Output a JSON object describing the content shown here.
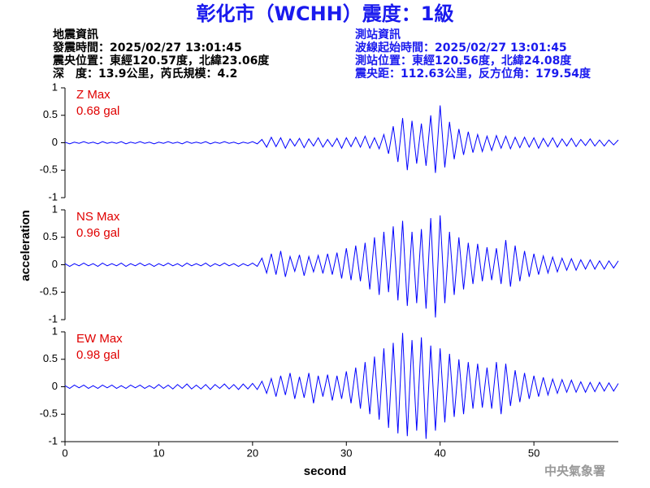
{
  "header": {
    "title": "彰化市（WCHH）震度：1級",
    "left": [
      "地震資訊",
      "發震時間：2025/02/27 13:01:45",
      "震央位置：東經120.57度，北緯23.06度",
      "深　度：13.9公里，芮氏規模：4.2"
    ],
    "right": [
      "測站資訊",
      "波線起始時間：2025/02/27 13:01:45",
      "測站位置：東經120.56度，北緯24.08度",
      "震央距：112.63公里，反方位角：179.54度"
    ],
    "footer": "中央氣象署"
  },
  "chart_data": {
    "type": "line",
    "y_label": "acceleration",
    "x_label": "second",
    "xlim": [
      0,
      59
    ],
    "xticks": [
      0,
      10,
      20,
      30,
      40,
      50
    ],
    "ylim": [
      -1,
      1
    ],
    "yticks": [
      1,
      0.5,
      0,
      -0.5,
      -1
    ],
    "x": [
      0,
      0.5,
      1,
      1.5,
      2,
      2.5,
      3,
      3.5,
      4,
      4.5,
      5,
      5.5,
      6,
      6.5,
      7,
      7.5,
      8,
      8.5,
      9,
      9.5,
      10,
      10.5,
      11,
      11.5,
      12,
      12.5,
      13,
      13.5,
      14,
      14.5,
      15,
      15.5,
      16,
      16.5,
      17,
      17.5,
      18,
      18.5,
      19,
      19.5,
      20,
      20.5,
      21,
      21.5,
      22,
      22.5,
      23,
      23.5,
      24,
      24.5,
      25,
      25.5,
      26,
      26.5,
      27,
      27.5,
      28,
      28.5,
      29,
      29.5,
      30,
      30.5,
      31,
      31.5,
      32,
      32.5,
      33,
      33.5,
      34,
      34.5,
      35,
      35.5,
      36,
      36.5,
      37,
      37.5,
      38,
      38.5,
      39,
      39.5,
      40,
      40.5,
      41,
      41.5,
      42,
      42.5,
      43,
      43.5,
      44,
      44.5,
      45,
      45.5,
      46,
      46.5,
      47,
      47.5,
      48,
      48.5,
      49,
      49.5,
      50,
      50.5,
      51,
      51.5,
      52,
      52.5,
      53,
      53.5,
      54,
      54.5,
      55,
      55.5,
      56,
      56.5,
      57,
      57.5,
      58,
      58.5,
      59
    ],
    "series": [
      {
        "name": "Z Max",
        "max_label": "0.68 gal",
        "color": "#0000ff",
        "label_color": "#e00000",
        "values": [
          0.01,
          -0.02,
          0.01,
          -0.01,
          0.02,
          -0.01,
          0.01,
          -0.02,
          0.02,
          -0.01,
          0.01,
          -0.01,
          0.02,
          -0.02,
          0.01,
          -0.01,
          0.02,
          -0.01,
          0.01,
          -0.02,
          0.01,
          -0.01,
          0.02,
          -0.01,
          0.01,
          -0.02,
          0.02,
          -0.01,
          0.01,
          -0.01,
          0.02,
          -0.02,
          0.01,
          -0.01,
          0.02,
          -0.01,
          0.01,
          -0.02,
          0.01,
          -0.01,
          0.02,
          -0.02,
          0.06,
          -0.08,
          0.1,
          -0.07,
          0.09,
          -0.1,
          0.07,
          -0.06,
          0.08,
          -0.09,
          0.07,
          -0.06,
          0.09,
          -0.08,
          0.06,
          -0.07,
          0.08,
          -0.1,
          0.09,
          -0.07,
          0.1,
          -0.08,
          0.12,
          -0.1,
          0.09,
          -0.11,
          0.15,
          -0.2,
          0.3,
          -0.35,
          0.45,
          -0.5,
          0.4,
          -0.38,
          0.35,
          -0.42,
          0.5,
          -0.55,
          0.68,
          -0.45,
          0.38,
          -0.3,
          0.25,
          -0.22,
          0.2,
          -0.18,
          0.15,
          -0.16,
          0.12,
          -0.14,
          0.13,
          -0.1,
          0.12,
          -0.11,
          0.1,
          -0.09,
          0.1,
          -0.08,
          0.09,
          -0.1,
          0.08,
          -0.07,
          0.09,
          -0.08,
          0.07,
          -0.06,
          0.08,
          -0.07,
          0.06,
          -0.05,
          0.07,
          -0.06,
          0.05,
          -0.06,
          0.05,
          -0.04,
          0.05
        ]
      },
      {
        "name": "NS Max",
        "max_label": "0.96 gal",
        "color": "#0000ff",
        "label_color": "#e00000",
        "values": [
          0.02,
          -0.03,
          0.02,
          -0.02,
          0.03,
          -0.02,
          0.02,
          -0.03,
          0.03,
          -0.02,
          0.02,
          -0.02,
          0.03,
          -0.03,
          0.02,
          -0.02,
          0.03,
          -0.02,
          0.02,
          -0.03,
          0.02,
          -0.02,
          0.03,
          -0.02,
          0.02,
          -0.03,
          0.03,
          -0.02,
          0.02,
          -0.02,
          0.03,
          -0.03,
          0.02,
          -0.02,
          0.03,
          -0.02,
          0.02,
          -0.03,
          0.02,
          -0.02,
          0.03,
          -0.03,
          0.12,
          -0.15,
          0.2,
          -0.18,
          0.25,
          -0.22,
          0.15,
          -0.12,
          0.18,
          -0.2,
          0.15,
          -0.13,
          0.17,
          -0.16,
          0.2,
          -0.18,
          0.22,
          -0.25,
          0.3,
          -0.28,
          0.35,
          -0.3,
          0.4,
          -0.45,
          0.5,
          -0.55,
          0.6,
          -0.5,
          0.7,
          -0.65,
          0.8,
          -0.75,
          0.6,
          -0.7,
          0.65,
          -0.8,
          0.85,
          -0.96,
          0.9,
          -0.7,
          0.6,
          -0.55,
          0.5,
          -0.45,
          0.4,
          -0.35,
          0.38,
          -0.3,
          0.32,
          -0.28,
          0.3,
          -0.35,
          0.45,
          -0.4,
          0.35,
          -0.3,
          0.25,
          -0.22,
          0.2,
          -0.18,
          0.16,
          -0.15,
          0.14,
          -0.13,
          0.12,
          -0.1,
          0.11,
          -0.1,
          0.09,
          -0.08,
          0.09,
          -0.08,
          0.07,
          -0.08,
          0.07,
          -0.06,
          0.07
        ]
      },
      {
        "name": "EW Max",
        "max_label": "0.98 gal",
        "color": "#0000ff",
        "label_color": "#e00000",
        "values": [
          0.02,
          -0.03,
          0.03,
          -0.02,
          0.03,
          -0.03,
          0.02,
          -0.03,
          0.03,
          -0.02,
          0.03,
          -0.03,
          0.02,
          -0.03,
          0.03,
          -0.02,
          0.03,
          -0.03,
          0.02,
          -0.03,
          0.04,
          -0.03,
          0.03,
          -0.04,
          0.04,
          -0.03,
          0.05,
          -0.04,
          0.03,
          -0.04,
          0.04,
          -0.05,
          0.04,
          -0.03,
          0.05,
          -0.04,
          0.04,
          -0.05,
          0.05,
          -0.04,
          0.06,
          -0.05,
          0.1,
          -0.12,
          0.15,
          -0.18,
          0.2,
          -0.15,
          0.25,
          -0.22,
          0.18,
          -0.2,
          0.25,
          -0.3,
          0.2,
          -0.18,
          0.22,
          -0.25,
          0.2,
          -0.22,
          0.28,
          -0.3,
          0.35,
          -0.4,
          0.45,
          -0.5,
          0.55,
          -0.6,
          0.7,
          -0.75,
          0.8,
          -0.85,
          0.98,
          -0.9,
          0.85,
          -0.8,
          0.9,
          -0.95,
          0.75,
          -0.8,
          0.7,
          -0.65,
          0.6,
          -0.55,
          0.5,
          -0.5,
          0.45,
          -0.4,
          0.42,
          -0.38,
          0.35,
          -0.4,
          0.45,
          -0.5,
          0.42,
          -0.35,
          0.3,
          -0.28,
          0.25,
          -0.22,
          0.2,
          -0.18,
          0.17,
          -0.15,
          0.14,
          -0.12,
          0.13,
          -0.1,
          0.12,
          -0.1,
          0.09,
          -0.1,
          0.08,
          -0.09,
          0.08,
          -0.08,
          0.07,
          -0.08,
          0.06
        ]
      }
    ]
  }
}
